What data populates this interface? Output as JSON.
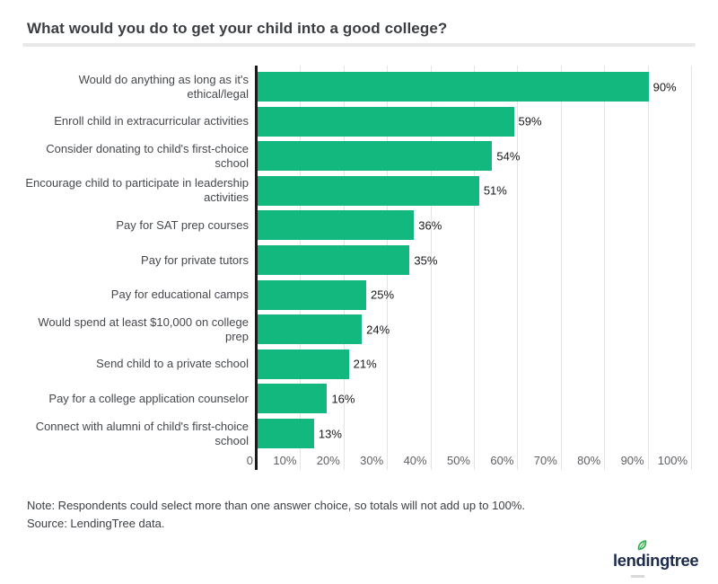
{
  "header": {
    "title": "What would you do to get your child into a good college?"
  },
  "chart_data": {
    "type": "bar",
    "orientation": "horizontal",
    "title": "What would you do to get your child into a good college?",
    "categories": [
      "Would do anything as long as it's ethical/legal",
      "Enroll child in extracurricular activities",
      "Consider donating to child's first-choice school",
      "Encourage child to participate in leadership activities",
      "Pay for SAT prep courses",
      "Pay for private tutors",
      "Pay for educational camps",
      "Would spend at least $10,000 on college prep",
      "Send child to a private school",
      "Pay for a college application counselor",
      "Connect with alumni of child's first-choice school"
    ],
    "label_lines": [
      [
        "Would do anything as long as it's",
        "ethical/legal"
      ],
      [
        "Enroll child in extracurricular activities"
      ],
      [
        "Consider donating to child's first-choice",
        "school"
      ],
      [
        "Encourage child to participate in leadership",
        "activities"
      ],
      [
        "Pay for SAT prep courses"
      ],
      [
        "Pay for private tutors"
      ],
      [
        "Pay for educational camps"
      ],
      [
        "Would spend at least $10,000 on college",
        "prep"
      ],
      [
        "Send child to a private school"
      ],
      [
        "Pay for a college application counselor"
      ],
      [
        "Connect with alumni of child's first-choice",
        "school"
      ]
    ],
    "values": [
      90,
      59,
      54,
      51,
      36,
      35,
      25,
      24,
      21,
      16,
      13
    ],
    "value_labels": [
      "90%",
      "59%",
      "54%",
      "51%",
      "36%",
      "35%",
      "25%",
      "24%",
      "21%",
      "16%",
      "13%"
    ],
    "x_ticks": [
      "0",
      "10%",
      "20%",
      "30%",
      "40%",
      "50%",
      "60%",
      "70%",
      "80%",
      "90%",
      "100%"
    ],
    "xlim": [
      0,
      100
    ],
    "grid": true,
    "legend": false,
    "bar_color": "#12b87d"
  },
  "footnote": {
    "note": "Note: Respondents could select more than one answer choice, so totals will not add up to 100%.",
    "source": "Source: LendingTree data."
  },
  "footer": {
    "logo_text": "lendingtree"
  },
  "colors": {
    "bar_green": "#12b87d",
    "leaf_green": "#2db24c",
    "logo_navy": "#1d2c4d",
    "grid": "#e4e4e4",
    "axis": "#1a1a1a",
    "divider": "#e8e8e8"
  }
}
